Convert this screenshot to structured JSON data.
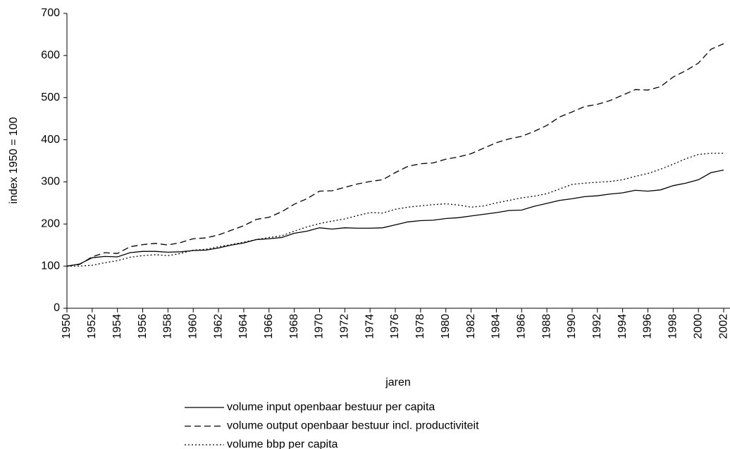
{
  "chart_data": {
    "type": "line",
    "x_label": "jaren",
    "y_label": "index 1950 = 100",
    "x": [
      1950,
      1951,
      1952,
      1953,
      1954,
      1955,
      1956,
      1957,
      1958,
      1959,
      1960,
      1961,
      1962,
      1963,
      1964,
      1965,
      1966,
      1967,
      1968,
      1969,
      1970,
      1971,
      1972,
      1973,
      1974,
      1975,
      1976,
      1977,
      1978,
      1979,
      1980,
      1981,
      1982,
      1983,
      1984,
      1985,
      1986,
      1987,
      1988,
      1989,
      1990,
      1991,
      1992,
      1993,
      1994,
      1995,
      1996,
      1997,
      1998,
      1999,
      2000,
      2001,
      2002
    ],
    "series": [
      {
        "name": "volume input openbaar bestuur per capita",
        "color": "#000000",
        "dash": "solid",
        "values": [
          100,
          105,
          120,
          123,
          122,
          132,
          135,
          135,
          133,
          134,
          137,
          138,
          143,
          150,
          155,
          163,
          165,
          168,
          178,
          183,
          191,
          188,
          191,
          190,
          190,
          191,
          198,
          205,
          208,
          209,
          213,
          215,
          219,
          223,
          227,
          232,
          233,
          242,
          249,
          256,
          260,
          265,
          267,
          271,
          274,
          280,
          278,
          281,
          291,
          297,
          305,
          322,
          328
        ]
      },
      {
        "name": "volume output openbaar bestuur incl. productiviteit",
        "color": "#000000",
        "dash": "dashed",
        "values": [
          100,
          104,
          122,
          132,
          130,
          146,
          151,
          154,
          150,
          156,
          165,
          167,
          174,
          185,
          196,
          211,
          216,
          229,
          247,
          260,
          278,
          279,
          287,
          295,
          301,
          305,
          322,
          337,
          343,
          345,
          354,
          359,
          367,
          380,
          393,
          402,
          408,
          420,
          434,
          454,
          466,
          479,
          484,
          493,
          506,
          519,
          518,
          526,
          549,
          564,
          582,
          615,
          628
        ]
      },
      {
        "name": "volume bbp per capita",
        "color": "#000000",
        "dash": "dotted",
        "values": [
          100,
          100,
          102,
          108,
          113,
          121,
          125,
          127,
          125,
          130,
          138,
          140,
          146,
          151,
          157,
          163,
          168,
          172,
          183,
          193,
          201,
          207,
          212,
          220,
          227,
          226,
          235,
          240,
          243,
          246,
          248,
          245,
          240,
          243,
          250,
          256,
          262,
          266,
          272,
          283,
          294,
          297,
          299,
          301,
          305,
          313,
          320,
          330,
          342,
          355,
          365,
          368,
          368
        ]
      }
    ],
    "xlim": [
      1950,
      2002.5
    ],
    "xticks": [
      1950,
      1952,
      1954,
      1956,
      1958,
      1960,
      1962,
      1964,
      1966,
      1968,
      1970,
      1972,
      1974,
      1976,
      1978,
      1980,
      1982,
      1984,
      1986,
      1988,
      1990,
      1992,
      1994,
      1996,
      1998,
      2000,
      2002
    ],
    "ylim": [
      0,
      700
    ],
    "yticks": [
      0,
      100,
      200,
      300,
      400,
      500,
      600,
      700
    ],
    "grid": false,
    "legend": "bottom"
  }
}
